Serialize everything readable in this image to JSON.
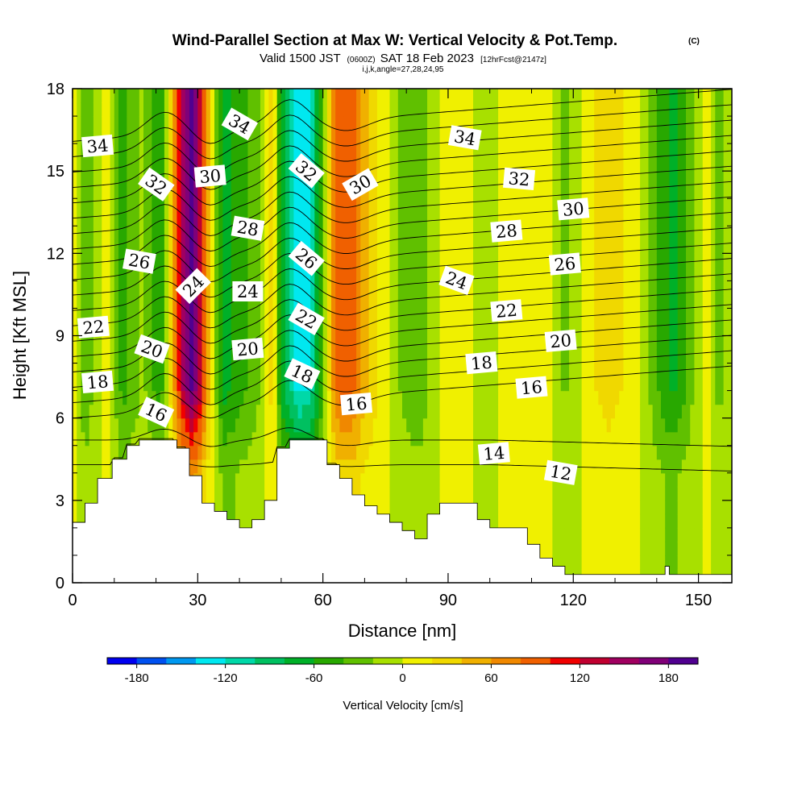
{
  "titles": {
    "main": "Wind-Parallel Section at Max W: Vertical Velocity & Pot.Temp.",
    "copyright": "(C)",
    "valid_prefix": "Valid 1500 JST",
    "valid_utc": "(0600Z)",
    "valid_date": "SAT 18 Feb 2023",
    "valid_fcst": "[12hrFcst@2147z]",
    "ijk": "i,j,k,angle=27,28,24,95"
  },
  "chart_data": {
    "type": "heatmap",
    "xlabel": "Distance [nm]",
    "ylabel": "Height [Kft MSL]",
    "xlim": [
      0,
      158
    ],
    "ylim": [
      0,
      18
    ],
    "x_ticks": [
      "0",
      "30",
      "60",
      "90",
      "120",
      "150"
    ],
    "x_tick_values": [
      0,
      30,
      60,
      90,
      120,
      150
    ],
    "y_ticks": [
      "0",
      "3",
      "6",
      "9",
      "12",
      "15",
      "18"
    ],
    "y_tick_values": [
      0,
      3,
      6,
      9,
      12,
      15,
      18
    ],
    "colorbar": {
      "label": "Vertical Velocity [cm/s]",
      "range": [
        -200,
        200
      ],
      "step": 20,
      "tick_labels": [
        "-180",
        "-120",
        "-60",
        "0",
        "60",
        "120",
        "180"
      ],
      "tick_values": [
        -180,
        -120,
        -60,
        0,
        60,
        120,
        180
      ],
      "colors": [
        "#0000f0",
        "#0050f0",
        "#0098f0",
        "#00e8f0",
        "#00d8a8",
        "#00c060",
        "#00b028",
        "#28a800",
        "#60c000",
        "#a8e000",
        "#f0f000",
        "#f0d800",
        "#f0b000",
        "#f08800",
        "#f06000",
        "#f00000",
        "#c00030",
        "#a00060",
        "#800078",
        "#500090"
      ]
    },
    "velocity_columns": [
      {
        "x": 0,
        "w": 15
      },
      {
        "x": 3,
        "w": -40
      },
      {
        "x": 8,
        "w": 10
      },
      {
        "x": 12,
        "w": -50
      },
      {
        "x": 17,
        "w": -15
      },
      {
        "x": 21,
        "w": -60
      },
      {
        "x": 24,
        "w": 40
      },
      {
        "x": 26,
        "w": 130
      },
      {
        "x": 28.5,
        "w": 190
      },
      {
        "x": 31,
        "w": 120
      },
      {
        "x": 33,
        "w": 20
      },
      {
        "x": 36,
        "w": -70
      },
      {
        "x": 40,
        "w": -50
      },
      {
        "x": 44,
        "w": -30
      },
      {
        "x": 48,
        "w": 30
      },
      {
        "x": 50,
        "w": -70
      },
      {
        "x": 54,
        "w": -130
      },
      {
        "x": 57,
        "w": -120
      },
      {
        "x": 60,
        "w": -40
      },
      {
        "x": 63,
        "w": 80
      },
      {
        "x": 66,
        "w": 100
      },
      {
        "x": 70,
        "w": 50
      },
      {
        "x": 74,
        "w": 15
      },
      {
        "x": 78,
        "w": -20
      },
      {
        "x": 83,
        "w": -40
      },
      {
        "x": 88,
        "w": 0
      },
      {
        "x": 93,
        "w": 20
      },
      {
        "x": 98,
        "w": -20
      },
      {
        "x": 104,
        "w": 10
      },
      {
        "x": 110,
        "w": 20
      },
      {
        "x": 114,
        "w": 5
      },
      {
        "x": 118,
        "w": -25
      },
      {
        "x": 123,
        "w": 10
      },
      {
        "x": 128,
        "w": 30
      },
      {
        "x": 132,
        "w": 20
      },
      {
        "x": 136,
        "w": 0
      },
      {
        "x": 140,
        "w": -40
      },
      {
        "x": 144,
        "w": -70
      },
      {
        "x": 148,
        "w": -30
      },
      {
        "x": 152,
        "w": 10
      },
      {
        "x": 155,
        "w": -30
      },
      {
        "x": 158,
        "w": 0
      }
    ],
    "terrain": [
      {
        "x": 0,
        "h": 2.2
      },
      {
        "x": 3,
        "h": 2.9
      },
      {
        "x": 6,
        "h": 3.8
      },
      {
        "x": 9.5,
        "h": 4.5
      },
      {
        "x": 13,
        "h": 5.0
      },
      {
        "x": 16,
        "h": 5.2
      },
      {
        "x": 22,
        "h": 5.2
      },
      {
        "x": 25,
        "h": 4.9
      },
      {
        "x": 28,
        "h": 3.9
      },
      {
        "x": 31,
        "h": 2.9
      },
      {
        "x": 34,
        "h": 2.6
      },
      {
        "x": 37,
        "h": 2.3
      },
      {
        "x": 40,
        "h": 2.0
      },
      {
        "x": 43,
        "h": 2.3
      },
      {
        "x": 46,
        "h": 3.0
      },
      {
        "x": 49,
        "h": 4.9
      },
      {
        "x": 52,
        "h": 5.2
      },
      {
        "x": 58,
        "h": 5.2
      },
      {
        "x": 61,
        "h": 4.3
      },
      {
        "x": 64,
        "h": 3.8
      },
      {
        "x": 67,
        "h": 3.2
      },
      {
        "x": 70,
        "h": 2.8
      },
      {
        "x": 73,
        "h": 2.5
      },
      {
        "x": 76,
        "h": 2.2
      },
      {
        "x": 79,
        "h": 1.9
      },
      {
        "x": 82,
        "h": 1.6
      },
      {
        "x": 85,
        "h": 2.5
      },
      {
        "x": 88,
        "h": 2.9
      },
      {
        "x": 94,
        "h": 2.9
      },
      {
        "x": 97,
        "h": 2.3
      },
      {
        "x": 100,
        "h": 2.0
      },
      {
        "x": 106,
        "h": 2.0
      },
      {
        "x": 109,
        "h": 1.4
      },
      {
        "x": 112,
        "h": 0.9
      },
      {
        "x": 115,
        "h": 0.6
      },
      {
        "x": 118,
        "h": 0.3
      },
      {
        "x": 133,
        "h": 0.3
      },
      {
        "x": 142,
        "h": 0.6
      },
      {
        "x": 143,
        "h": 0.3
      },
      {
        "x": 158,
        "h": 0.3
      }
    ],
    "isentrope_levels": [
      12,
      14,
      16,
      17,
      18,
      19,
      20,
      21,
      22,
      23,
      24,
      25,
      26,
      27,
      28,
      29,
      30,
      31,
      32,
      33,
      34
    ],
    "contour_labels": [
      {
        "text": "34",
        "x": 6,
        "y": 15.9,
        "rot": -5
      },
      {
        "text": "32",
        "x": 20,
        "y": 14.5,
        "rot": 35
      },
      {
        "text": "30",
        "x": 33,
        "y": 14.8,
        "rot": -5
      },
      {
        "text": "34",
        "x": 40,
        "y": 16.7,
        "rot": 30
      },
      {
        "text": "32",
        "x": 56,
        "y": 15.0,
        "rot": 40
      },
      {
        "text": "30",
        "x": 69,
        "y": 14.5,
        "rot": -30
      },
      {
        "text": "34",
        "x": 94,
        "y": 16.2,
        "rot": 10
      },
      {
        "text": "32",
        "x": 107,
        "y": 14.7,
        "rot": 5
      },
      {
        "text": "30",
        "x": 120,
        "y": 13.6,
        "rot": -5
      },
      {
        "text": "28",
        "x": 42,
        "y": 12.9,
        "rot": 10
      },
      {
        "text": "28",
        "x": 104,
        "y": 12.8,
        "rot": -5
      },
      {
        "text": "26",
        "x": 16,
        "y": 11.7,
        "rot": 10
      },
      {
        "text": "26",
        "x": 56,
        "y": 11.8,
        "rot": 40
      },
      {
        "text": "26",
        "x": 118,
        "y": 11.6,
        "rot": -5
      },
      {
        "text": "24",
        "x": 29,
        "y": 10.8,
        "rot": -45
      },
      {
        "text": "24",
        "x": 42,
        "y": 10.6,
        "rot": 0
      },
      {
        "text": "24",
        "x": 92,
        "y": 11.0,
        "rot": 20
      },
      {
        "text": "22",
        "x": 5,
        "y": 9.3,
        "rot": -5
      },
      {
        "text": "22",
        "x": 56,
        "y": 9.6,
        "rot": 30
      },
      {
        "text": "22",
        "x": 104,
        "y": 9.9,
        "rot": -5
      },
      {
        "text": "20",
        "x": 19,
        "y": 8.5,
        "rot": 20
      },
      {
        "text": "20",
        "x": 42,
        "y": 8.5,
        "rot": -5
      },
      {
        "text": "20",
        "x": 117,
        "y": 8.8,
        "rot": -5
      },
      {
        "text": "18",
        "x": 6,
        "y": 7.3,
        "rot": -5
      },
      {
        "text": "18",
        "x": 55,
        "y": 7.6,
        "rot": 25
      },
      {
        "text": "18",
        "x": 98,
        "y": 8.0,
        "rot": -5
      },
      {
        "text": "16",
        "x": 20,
        "y": 6.2,
        "rot": 25
      },
      {
        "text": "16",
        "x": 68,
        "y": 6.5,
        "rot": -5
      },
      {
        "text": "16",
        "x": 110,
        "y": 7.1,
        "rot": -5
      },
      {
        "text": "14",
        "x": 101,
        "y": 4.7,
        "rot": -5
      },
      {
        "text": "12",
        "x": 117,
        "y": 4.0,
        "rot": 10
      }
    ]
  }
}
